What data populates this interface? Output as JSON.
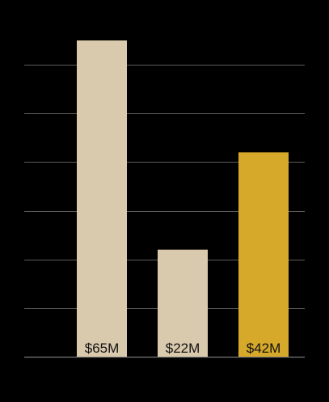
{
  "chart_data": {
    "type": "bar",
    "categories": [
      "",
      "",
      ""
    ],
    "values": [
      65,
      22,
      42
    ],
    "value_labels": [
      "$65M",
      "$22M",
      "$42M"
    ],
    "unit": "$M",
    "ylim": [
      0,
      65
    ],
    "grid": true,
    "gridlines_at": [
      0,
      10,
      20,
      30,
      40,
      50,
      60
    ],
    "legend": "none",
    "title": "",
    "xlabel": "",
    "ylabel": "",
    "colors": {
      "background": "#000000",
      "default_bar": "#d9c9ad",
      "highlight_bar": "#d6a92a",
      "label_text": "#111111",
      "gridline": "#5a5a5a"
    },
    "highlight_index": 2
  }
}
